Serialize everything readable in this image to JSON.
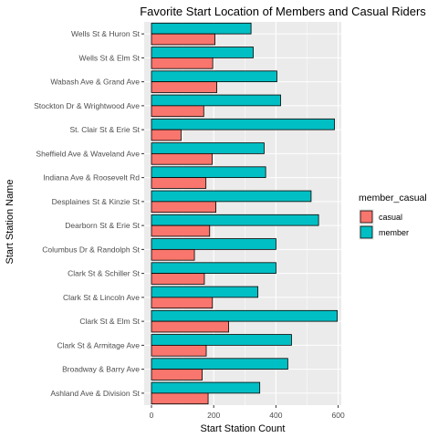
{
  "chart_data": {
    "type": "bar",
    "orientation": "horizontal",
    "title": "Favorite Start Location of Members and Casual Riders",
    "xlabel": "Start Station Count",
    "ylabel": "Start Station Name",
    "xlim": [
      0,
      610
    ],
    "x_ticks": [
      0,
      200,
      400,
      600
    ],
    "grid": true,
    "legend_position": "right",
    "legend_title": "member_casual",
    "categories": [
      "Ashland Ave & Division St",
      "Broadway & Barry Ave",
      "Clark St & Armitage Ave",
      "Clark St & Elm St",
      "Clark St & Lincoln Ave",
      "Clark St & Schiller St",
      "Columbus Dr & Randolph St",
      "Dearborn St & Erie St",
      "Desplaines St & Kinzie St",
      "Indiana Ave & Roosevelt Rd",
      "Sheffield Ave & Waveland Ave",
      "St. Clair St & Erie St",
      "Stockton Dr & Wrightwood Ave",
      "Wabash Ave & Grand Ave",
      "Wells St & Elm St",
      "Wells St & Huron St"
    ],
    "series": [
      {
        "name": "casual",
        "color": "#F8766D",
        "values": [
          182,
          163,
          176,
          248,
          196,
          170,
          138,
          187,
          207,
          175,
          195,
          95,
          168,
          210,
          197,
          204
        ]
      },
      {
        "name": "member",
        "color": "#00BFC4",
        "values": [
          348,
          438,
          450,
          597,
          342,
          400,
          400,
          537,
          513,
          367,
          362,
          588,
          415,
          403,
          327,
          320
        ]
      }
    ]
  },
  "colors": {
    "panel_background": "#EBEBEB",
    "grid_major": "#FFFFFF",
    "bar_outline": "#000000"
  }
}
